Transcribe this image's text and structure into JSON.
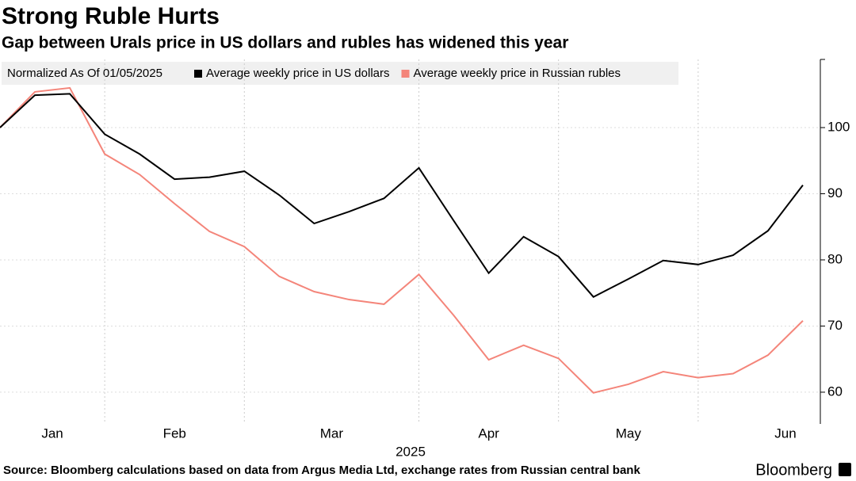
{
  "chart_data": {
    "type": "line",
    "title": "Strong Ruble Hurts",
    "subtitle": "Gap between Urals price in US dollars and rubles has widened this year",
    "legend_title": "Normalized As Of 01/05/2025",
    "x_axis_label": "2025",
    "source": "Source: Bloomberg calculations based on data from Argus Media Ltd, exchange rates from Russian central bank",
    "brand": "Bloomberg",
    "x": [
      0,
      1,
      2,
      3,
      4,
      5,
      6,
      7,
      8,
      9,
      10,
      11,
      12,
      13,
      14,
      15,
      16,
      17,
      18,
      19,
      20,
      21,
      22,
      23
    ],
    "xlim": [
      0,
      23.5
    ],
    "xticks": [
      {
        "value": 1.5,
        "label": "Jan"
      },
      {
        "value": 5,
        "label": "Feb"
      },
      {
        "value": 9.5,
        "label": "Mar"
      },
      {
        "value": 14,
        "label": "Apr"
      },
      {
        "value": 18,
        "label": "May"
      },
      {
        "value": 22.5,
        "label": "Jun"
      }
    ],
    "xgrid": [
      3,
      7,
      12,
      16,
      20
    ],
    "ylim": [
      55.2,
      110.3
    ],
    "yticks": [
      60,
      70,
      80,
      90,
      100
    ],
    "series": [
      {
        "name": "Average weekly price in US dollars",
        "color": "#000000",
        "values": [
          100,
          104.9,
          105.1,
          99.0,
          96.0,
          92.2,
          92.5,
          93.4,
          89.8,
          85.5,
          87.3,
          89.3,
          93.9,
          85.9,
          78.0,
          83.5,
          80.5,
          74.4,
          77.1,
          79.9,
          79.3,
          80.7,
          84.4,
          91.3
        ]
      },
      {
        "name": "Average weekly price in Russian rubles",
        "color": "#f4857a",
        "values": [
          100,
          105.4,
          106.0,
          96.0,
          92.9,
          88.5,
          84.3,
          82.0,
          77.5,
          75.2,
          74.0,
          73.3,
          77.8,
          71.6,
          64.9,
          67.1,
          65.1,
          59.9,
          61.2,
          63.1,
          62.2,
          62.8,
          65.6,
          70.8
        ]
      }
    ]
  }
}
